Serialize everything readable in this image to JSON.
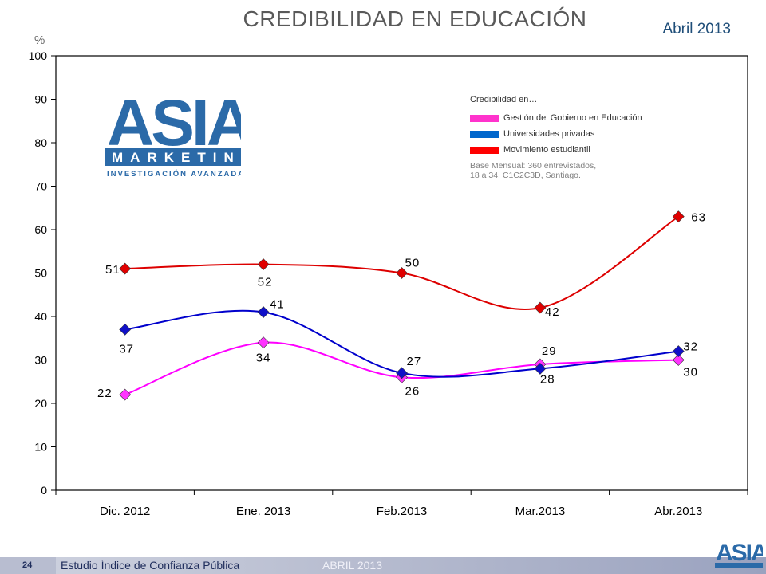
{
  "header": {
    "title": "CREDIBILIDAD EN EDUCACIÓN",
    "date": "Abril 2013",
    "unit": "%"
  },
  "logo": {
    "brand": "ASIA",
    "line1": "MARKETING",
    "line2": "INVESTIGACIÓN AVANZADA"
  },
  "legend": {
    "title": "Credibilidad en…",
    "items": [
      {
        "label": "Gestión del Gobierno en Educación",
        "color": "#ff33cc"
      },
      {
        "label": "Universidades privadas",
        "color": "#0066cc"
      },
      {
        "label": "Movimiento estudiantil",
        "color": "#ff0000"
      }
    ],
    "note_line1": "Base Mensual: 360 entrevistados,",
    "note_line2": "18 a 34, C1C2C3D, Santiago."
  },
  "footer": {
    "page": "24",
    "study": "Estudio  Índice de Confianza Pública",
    "date": "ABRIL 2013"
  },
  "chart_data": {
    "type": "line",
    "categories": [
      "Dic. 2012",
      "Ene. 2013",
      "Feb.2013",
      "Mar.2013",
      "Abr.2013"
    ],
    "ylim": [
      0,
      100
    ],
    "yticks": [
      0,
      10,
      20,
      30,
      40,
      50,
      60,
      70,
      80,
      90,
      100
    ],
    "ylabel": "%",
    "grid": false,
    "series": [
      {
        "name": "Gestión del Gobierno en Educación",
        "values": [
          22,
          34,
          26,
          29,
          30
        ],
        "line": "#ff00ff",
        "marker": "#ff33ff",
        "labels": [
          "22",
          "34",
          "26",
          "29",
          "30"
        ]
      },
      {
        "name": "Universidades privadas",
        "values": [
          37,
          41,
          27,
          28,
          32
        ],
        "line": "#0000cc",
        "marker": "#1010c8",
        "labels": [
          "37",
          "41",
          "27",
          "28",
          "32"
        ]
      },
      {
        "name": "Movimiento estudiantil",
        "values": [
          51,
          52,
          50,
          42,
          63
        ],
        "line": "#dd0000",
        "marker": "#e00000",
        "labels": [
          "51",
          "52",
          "50",
          "42",
          "63"
        ]
      }
    ]
  }
}
